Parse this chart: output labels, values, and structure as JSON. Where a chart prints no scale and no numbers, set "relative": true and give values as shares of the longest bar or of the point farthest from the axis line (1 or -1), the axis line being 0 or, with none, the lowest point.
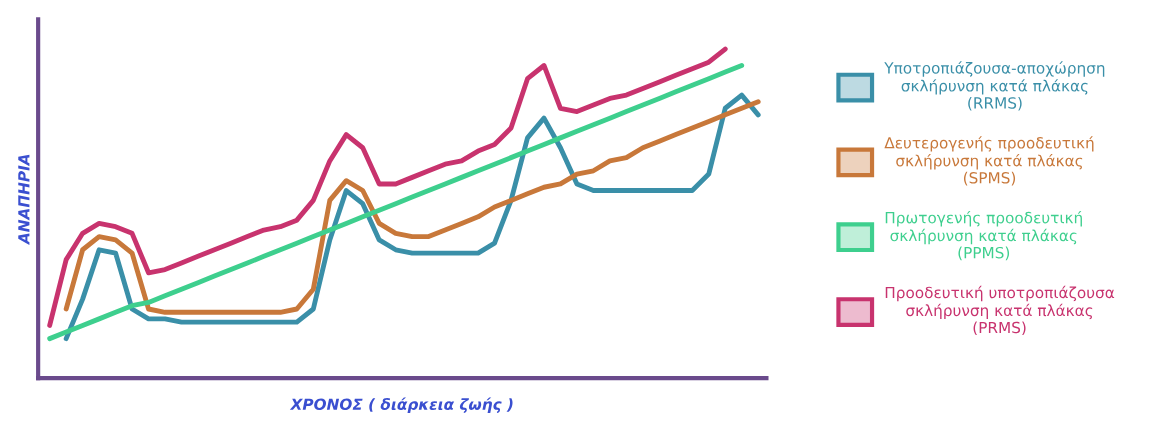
{
  "chart_data": {
    "type": "line",
    "relative": true,
    "xlabel": "ΧΡΟΝΟΣ ( διάρκεια ζωής )",
    "ylabel": "ΑΝΑΠΗΡΙΑ",
    "legend": "right",
    "marker": "none",
    "line_style": "solid",
    "categories": [
      null,
      null,
      null,
      null,
      null,
      null,
      null,
      null,
      null,
      null,
      null,
      null,
      null,
      null,
      null,
      null,
      null,
      null,
      null,
      null,
      null,
      null,
      null,
      null,
      null,
      null,
      null,
      null,
      null,
      null,
      null,
      null,
      null,
      null,
      null,
      null,
      null,
      null,
      null,
      null,
      null,
      null,
      null,
      null
    ],
    "series": [
      {
        "name": "Υποτροπιάζουσα-αποχώρηση\nσκλήρυνση κατά πλάκας\n(RRMS)",
        "color": "#3a8fa8",
        "values": [
          null,
          0.12,
          0.24,
          0.39,
          0.38,
          0.21,
          0.18,
          0.18,
          0.17,
          0.17,
          0.17,
          0.17,
          0.17,
          0.17,
          0.17,
          0.17,
          0.21,
          0.42,
          0.57,
          0.53,
          0.42,
          0.39,
          0.38,
          0.38,
          0.38,
          0.38,
          0.38,
          0.41,
          0.54,
          0.73,
          0.79,
          0.7,
          0.59,
          0.57,
          0.57,
          0.57,
          0.57,
          0.57,
          0.57,
          0.57,
          0.62,
          0.82,
          0.86,
          0.8
        ]
      },
      {
        "name": "Δευτερογενής προοδευτική\nσκλήρυνση κατά πλάκας\n(SPMS)",
        "color": "#c8783a",
        "values": [
          null,
          0.21,
          0.39,
          0.43,
          0.42,
          0.38,
          0.21,
          0.2,
          0.2,
          0.2,
          0.2,
          0.2,
          0.2,
          0.2,
          0.2,
          0.21,
          0.27,
          0.54,
          0.6,
          0.57,
          0.47,
          0.44,
          0.43,
          0.43,
          0.45,
          0.47,
          0.49,
          0.52,
          0.54,
          0.56,
          0.58,
          0.59,
          0.62,
          0.63,
          0.66,
          0.67,
          0.7,
          0.72,
          0.74,
          0.76,
          0.78,
          0.8,
          0.82,
          0.84
        ]
      },
      {
        "name": "Πρωτογενής προοδευτική\nσκλήρυνση κατά πλάκας\n(PPMS)",
        "color": "#3ecf8e",
        "values": [
          0.12,
          0.14,
          0.16,
          0.18,
          0.2,
          0.22,
          0.23,
          0.25,
          0.27,
          0.29,
          0.31,
          0.33,
          0.35,
          0.37,
          0.39,
          0.41,
          0.43,
          0.45,
          0.47,
          0.49,
          0.51,
          0.53,
          0.55,
          0.57,
          0.59,
          0.61,
          0.63,
          0.65,
          0.67,
          0.69,
          0.71,
          0.73,
          0.75,
          0.77,
          0.79,
          0.81,
          0.83,
          0.85,
          0.87,
          0.89,
          0.91,
          0.93,
          0.95,
          null
        ]
      },
      {
        "name": "Προοδευτική υποτροπιάζουσα\nσκλήρυνση κατά πλάκας\n(PRMS)",
        "color": "#c8336e",
        "values": [
          0.16,
          0.36,
          0.44,
          0.47,
          0.46,
          0.44,
          0.32,
          0.33,
          0.35,
          0.37,
          0.39,
          0.41,
          0.43,
          0.45,
          0.46,
          0.48,
          0.54,
          0.66,
          0.74,
          0.7,
          0.59,
          0.59,
          0.61,
          0.63,
          0.65,
          0.66,
          0.69,
          0.71,
          0.76,
          0.91,
          0.95,
          0.82,
          0.81,
          0.83,
          0.85,
          0.86,
          0.88,
          0.9,
          0.92,
          0.94,
          0.96,
          1.0,
          null,
          null
        ]
      }
    ]
  }
}
